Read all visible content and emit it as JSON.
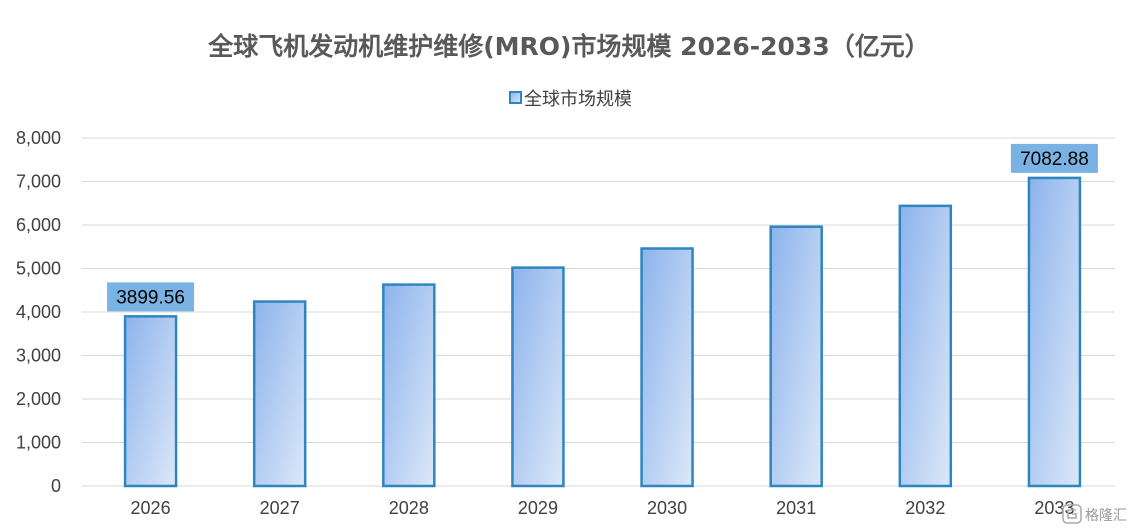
{
  "colors": {
    "bar_fill_top": "#8db3ec",
    "bar_fill_bottom": "#dce8f8",
    "bar_stroke": "#2e86c1",
    "label_box": "#7ab3e3",
    "gridline": "#d9d9d9",
    "axis_text": "#404040",
    "title_text": "#595959"
  },
  "watermark": {
    "text": "格隆汇"
  },
  "chart_data": {
    "type": "bar",
    "title": "全球飞机发动机维护维修(MRO)市场规模 2026-2033（亿元）",
    "xlabel": "",
    "ylabel": "",
    "categories": [
      "2026",
      "2027",
      "2028",
      "2029",
      "2030",
      "2031",
      "2032",
      "2033"
    ],
    "series": [
      {
        "name": "全球市场规模",
        "values": [
          3899.56,
          4240,
          4630,
          5020,
          5460,
          5960,
          6440,
          7082.88
        ]
      }
    ],
    "data_labels": [
      {
        "index": 0,
        "text": "3899.56"
      },
      {
        "index": 7,
        "text": "7082.88"
      }
    ],
    "ylim": [
      0,
      8000
    ],
    "yticks": [
      "0",
      "1,000",
      "2,000",
      "3,000",
      "4,000",
      "5,000",
      "6,000",
      "7,000",
      "8,000"
    ],
    "ytick_values": [
      0,
      1000,
      2000,
      3000,
      4000,
      5000,
      6000,
      7000,
      8000
    ],
    "grid": true,
    "legend_position": "top-center"
  }
}
